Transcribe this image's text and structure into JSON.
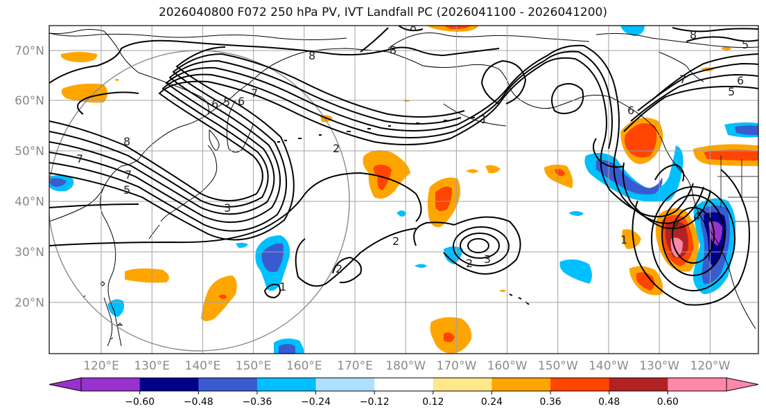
{
  "title": "2026040800 F072 250 hPa PV, IVT Landfall PC (2026041100 - 2026041200)",
  "lat_labels": [
    "70°N",
    "60°N",
    "50°N",
    "40°N",
    "30°N",
    "20°N"
  ],
  "lon_labels": [
    "120°E",
    "130°E",
    "140°E",
    "150°E",
    "160°E",
    "170°E",
    "180°W",
    "170°W",
    "160°W",
    "150°W",
    "140°W",
    "130°W",
    "120°W"
  ],
  "colorbar": {
    "ticks": [
      "−0.60",
      "−0.48",
      "−0.36",
      "−0.24",
      "−0.12",
      "0.12",
      "0.24",
      "0.36",
      "0.48",
      "0.60"
    ],
    "colors": [
      "#9932CC",
      "#00008B",
      "#3A5BD0",
      "#00BFFF",
      "#B0E0FF",
      "#FFFFFF",
      "#FFE88A",
      "#FFA500",
      "#FF4500",
      "#B22222",
      "#FF88AA"
    ]
  },
  "contour_labels": [
    "8",
    "8",
    "8",
    "7",
    "6",
    "5",
    "6",
    "7",
    "8",
    "7",
    "5",
    "3",
    "2",
    "2",
    "2",
    "3",
    "1",
    "1",
    "2",
    "6",
    "5",
    "4",
    "2",
    "1",
    "8",
    "7",
    "6",
    "5"
  ]
}
